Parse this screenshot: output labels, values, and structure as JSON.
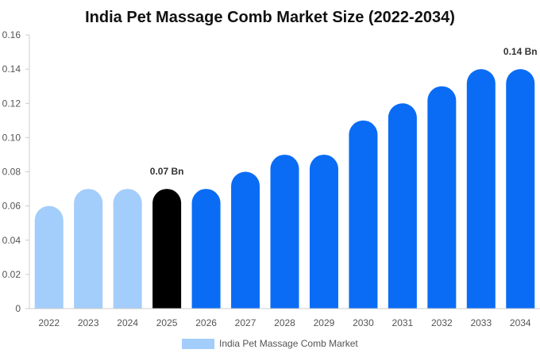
{
  "chart_data": {
    "type": "bar",
    "title": "India Pet Massage Comb Market Size (2022-2034)",
    "xlabel": "",
    "ylabel": "",
    "categories": [
      "2022",
      "2023",
      "2024",
      "2025",
      "2026",
      "2027",
      "2028",
      "2029",
      "2030",
      "2031",
      "2032",
      "2033",
      "2034"
    ],
    "series": [
      {
        "name": "India Pet Massage Comb Market",
        "values": [
          0.06,
          0.07,
          0.07,
          0.07,
          0.07,
          0.08,
          0.09,
          0.09,
          0.11,
          0.12,
          0.13,
          0.14,
          0.14
        ]
      }
    ],
    "ylim": [
      0,
      0.16
    ],
    "yticks": [
      "0",
      "0.02",
      "0.04",
      "0.06",
      "0.08",
      "0.10",
      "0.12",
      "0.14",
      "0.16"
    ],
    "ytick_values": [
      0,
      0.02,
      0.04,
      0.06,
      0.08,
      0.1,
      0.12,
      0.14,
      0.16
    ],
    "annotations": [
      {
        "category": "2025",
        "text": "0.07 Bn"
      },
      {
        "category": "2034",
        "text": "0.14 Bn"
      }
    ],
    "bar_colors": {
      "historical": "#a3cdfb",
      "current": "#000000",
      "forecast": "#0a6cf5"
    },
    "current_year": "2025",
    "grid": false,
    "legend_position": "bottom-center"
  }
}
